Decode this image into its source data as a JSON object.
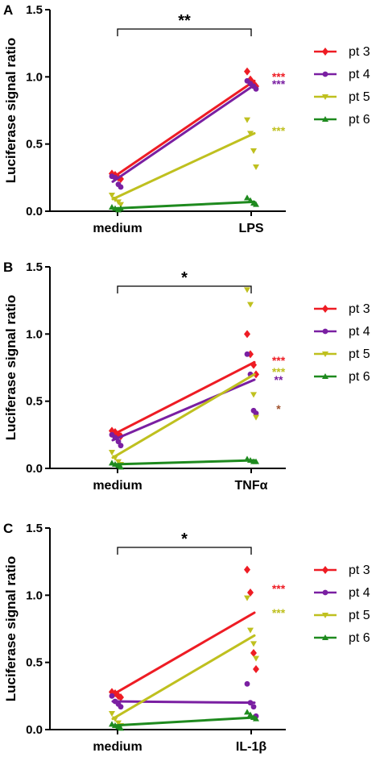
{
  "chart_data": [
    {
      "type": "scatter",
      "panel": "A",
      "ylabel": "Luciferase signal ratio",
      "categories": [
        "medium",
        "LPS"
      ],
      "ylim": [
        0,
        1.5
      ],
      "yticks": [
        "0.0",
        "0.5",
        "1.0",
        "1.5"
      ],
      "bracket_label": "**",
      "series": [
        {
          "name": "pt 3",
          "color": "#ee1c24",
          "marker": "diamond",
          "line": [
            0.25,
            0.97
          ],
          "points": [
            [
              0.28,
              0.27,
              0.25,
              0.24
            ],
            [
              1.04,
              0.98,
              0.95,
              0.93
            ]
          ],
          "sig": "***"
        },
        {
          "name": "pt 4",
          "color": "#7a1fa2",
          "marker": "circle",
          "line": [
            0.22,
            0.94
          ],
          "points": [
            [
              0.26,
              0.25,
              0.2,
              0.18
            ],
            [
              0.97,
              0.95,
              0.93,
              0.91
            ]
          ],
          "sig": "***"
        },
        {
          "name": "pt 5",
          "color": "#bfc01f",
          "marker": "triangle-down",
          "line": [
            0.09,
            0.58
          ],
          "points": [
            [
              0.12,
              0.09,
              0.07,
              0.05
            ],
            [
              0.68,
              0.58,
              0.45,
              0.33
            ]
          ],
          "sig": "***"
        },
        {
          "name": "pt 6",
          "color": "#1e8a1e",
          "marker": "triangle-up",
          "line": [
            0.02,
            0.07
          ],
          "points": [
            [
              0.03,
              0.02,
              0.01,
              0.02
            ],
            [
              0.1,
              0.08,
              0.06,
              0.05
            ]
          ],
          "sig": ""
        }
      ]
    },
    {
      "type": "scatter",
      "panel": "B",
      "ylabel": "Luciferase signal ratio",
      "categories": [
        "medium",
        "TNFα"
      ],
      "ylim": [
        0,
        1.5
      ],
      "yticks": [
        "0.0",
        "0.5",
        "1.0",
        "1.5"
      ],
      "bracket_label": "*",
      "series": [
        {
          "name": "pt 3",
          "color": "#ee1c24",
          "marker": "diamond",
          "line": [
            0.25,
            0.79
          ],
          "points": [
            [
              0.28,
              0.27,
              0.25,
              0.24
            ],
            [
              1.0,
              0.85,
              0.77,
              0.7
            ]
          ],
          "sig": "***"
        },
        {
          "name": "pt 4",
          "color": "#7a1fa2",
          "marker": "circle",
          "line": [
            0.21,
            0.66
          ],
          "points": [
            [
              0.25,
              0.23,
              0.2,
              0.17
            ],
            [
              0.85,
              0.7,
              0.43,
              0.41
            ]
          ],
          "sig": "**"
        },
        {
          "name": "pt 5",
          "color": "#bfc01f",
          "marker": "triangle-down",
          "line": [
            0.08,
            0.7
          ],
          "points": [
            [
              0.12,
              0.08,
              0.05,
              0.03
            ],
            [
              1.33,
              1.22,
              0.55,
              0.38
            ]
          ],
          "sig": "***"
        },
        {
          "name": "pt 6",
          "color": "#1e8a1e",
          "marker": "triangle-up",
          "line": [
            0.03,
            0.06
          ],
          "points": [
            [
              0.04,
              0.03,
              0.02,
              0.01
            ],
            [
              0.07,
              0.06,
              0.05,
              0.05
            ]
          ],
          "sig": ""
        }
      ],
      "extra_sig": {
        "text": "*",
        "color": "#a0522d"
      }
    },
    {
      "type": "scatter",
      "panel": "C",
      "ylabel": "Luciferase signal ratio",
      "categories": [
        "medium",
        "IL-1β"
      ],
      "ylim": [
        0,
        1.5
      ],
      "yticks": [
        "0.0",
        "0.5",
        "1.0",
        "1.5"
      ],
      "bracket_label": "*",
      "series": [
        {
          "name": "pt 3",
          "color": "#ee1c24",
          "marker": "diamond",
          "line": [
            0.26,
            0.87
          ],
          "points": [
            [
              0.28,
              0.27,
              0.25,
              0.24
            ],
            [
              1.19,
              1.02,
              0.57,
              0.45
            ]
          ],
          "sig": "***"
        },
        {
          "name": "pt 4",
          "color": "#7a1fa2",
          "marker": "circle",
          "line": [
            0.21,
            0.2
          ],
          "points": [
            [
              0.25,
              0.21,
              0.19,
              0.17
            ],
            [
              0.34,
              0.2,
              0.17,
              0.1
            ]
          ],
          "sig": ""
        },
        {
          "name": "pt 5",
          "color": "#bfc01f",
          "marker": "triangle-down",
          "line": [
            0.08,
            0.7
          ],
          "points": [
            [
              0.12,
              0.08,
              0.05,
              0.03
            ],
            [
              0.98,
              0.74,
              0.64,
              0.53
            ]
          ],
          "sig": "***"
        },
        {
          "name": "pt 6",
          "color": "#1e8a1e",
          "marker": "triangle-up",
          "line": [
            0.03,
            0.09
          ],
          "points": [
            [
              0.04,
              0.03,
              0.02,
              0.01
            ],
            [
              0.13,
              0.11,
              0.09,
              0.08
            ]
          ],
          "sig": ""
        }
      ]
    }
  ]
}
